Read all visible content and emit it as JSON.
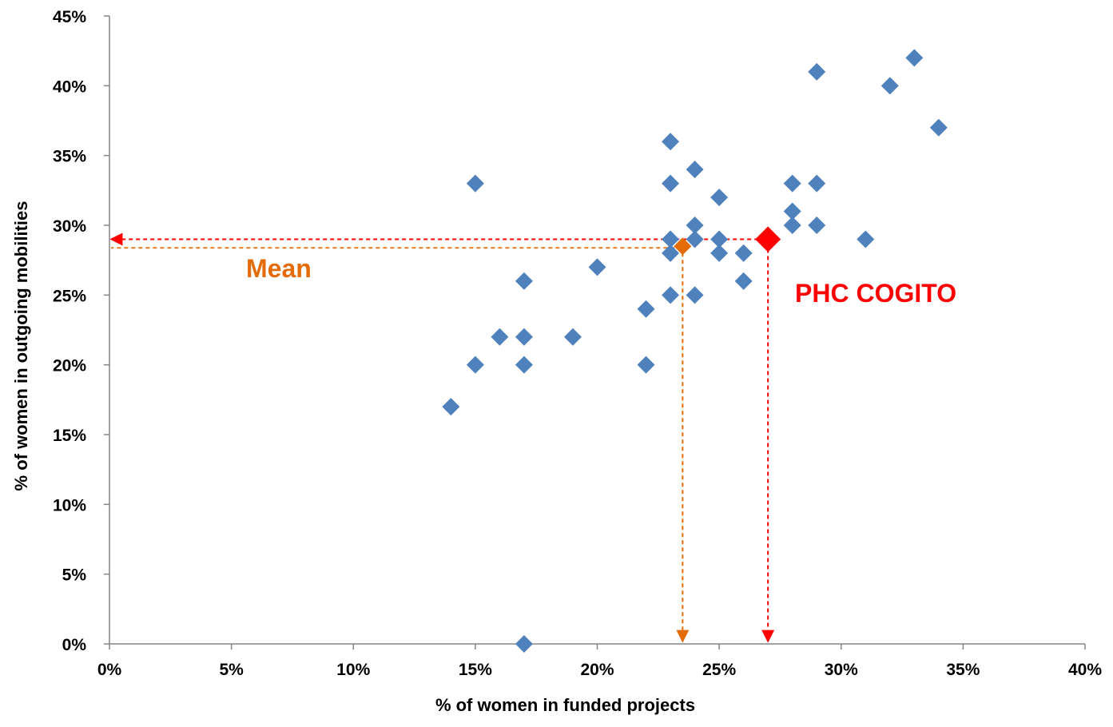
{
  "chart_data": {
    "type": "scatter",
    "xlabel": "% of women in funded projects",
    "ylabel": "% of women in outgoing mobilities",
    "xlim": [
      0,
      40
    ],
    "ylim": [
      0,
      45
    ],
    "x_ticks": [
      "0%",
      "5%",
      "10%",
      "15%",
      "20%",
      "25%",
      "30%",
      "35%",
      "40%"
    ],
    "y_ticks": [
      "0%",
      "5%",
      "10%",
      "15%",
      "20%",
      "25%",
      "30%",
      "35%",
      "40%",
      "45%"
    ],
    "grid": false,
    "series": [
      {
        "color": "#4f81bd",
        "marker": "diamond",
        "points": [
          {
            "x": 14,
            "y": 17
          },
          {
            "x": 15,
            "y": 33
          },
          {
            "x": 15,
            "y": 20
          },
          {
            "x": 16,
            "y": 22
          },
          {
            "x": 17,
            "y": 26
          },
          {
            "x": 17,
            "y": 22
          },
          {
            "x": 17,
            "y": 20
          },
          {
            "x": 17,
            "y": 0
          },
          {
            "x": 19,
            "y": 22
          },
          {
            "x": 20,
            "y": 27
          },
          {
            "x": 22,
            "y": 24
          },
          {
            "x": 22,
            "y": 20
          },
          {
            "x": 23,
            "y": 36
          },
          {
            "x": 23,
            "y": 33
          },
          {
            "x": 23,
            "y": 29
          },
          {
            "x": 23,
            "y": 28
          },
          {
            "x": 23,
            "y": 25
          },
          {
            "x": 24,
            "y": 34
          },
          {
            "x": 24,
            "y": 30
          },
          {
            "x": 24,
            "y": 29
          },
          {
            "x": 24,
            "y": 25
          },
          {
            "x": 25,
            "y": 32
          },
          {
            "x": 25,
            "y": 29
          },
          {
            "x": 25,
            "y": 28
          },
          {
            "x": 26,
            "y": 28
          },
          {
            "x": 26,
            "y": 26
          },
          {
            "x": 28,
            "y": 33
          },
          {
            "x": 28,
            "y": 31
          },
          {
            "x": 28,
            "y": 30
          },
          {
            "x": 29,
            "y": 41
          },
          {
            "x": 29,
            "y": 33
          },
          {
            "x": 29,
            "y": 30
          },
          {
            "x": 31,
            "y": 29
          },
          {
            "x": 32,
            "y": 40
          },
          {
            "x": 33,
            "y": 42
          },
          {
            "x": 34,
            "y": 37
          }
        ]
      },
      {
        "name": "Mean",
        "color": "#e36c09",
        "marker": "diamond",
        "points": [
          {
            "x": 23.5,
            "y": 28.5
          }
        ]
      },
      {
        "name": "PHC COGITO",
        "color": "#ff0000",
        "marker": "diamond-large",
        "points": [
          {
            "x": 27,
            "y": 29
          }
        ]
      }
    ],
    "annotations": [
      {
        "text": "Mean",
        "color": "#e36c09"
      },
      {
        "text": "PHC COGITO",
        "color": "#ff0000"
      }
    ]
  }
}
